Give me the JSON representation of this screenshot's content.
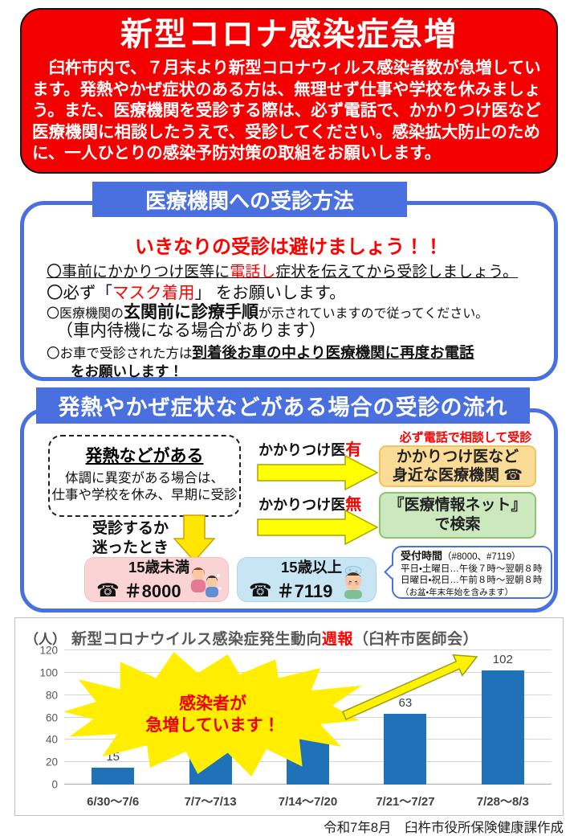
{
  "page": {
    "footer": "令和7年8月　臼杵市役所保険健康課作成"
  },
  "alert": {
    "title": "新型コロナ感染症急増",
    "body": "　臼杵市内で、７月末より新型コロナウィルス感染者数が急増しています。発熱やかぜ症状のある方は、無理せず仕事や学校を休みましょう。また、医療機関を受診する際は、必ず電話で、かかりつけ医など医療機関に相談したうえで、受診してください。感染拡大防止のために、一人ひとりの感染予防対策の取組をお願いします。"
  },
  "section1": {
    "header": "医療機関への受診方法",
    "warning": "いきなりの受診は避けましょう！！",
    "b1_pre": "〇事前にかかりつけ医等に",
    "b1_red": "電話し",
    "b1_post": "症状を伝えてから受診しましょう。",
    "b2_pre": "〇必ず「",
    "b2_red": "マスク着用",
    "b2_post": "」 をお願いします。",
    "b3_pre": "〇医療機関の",
    "b3_bold": "玄関前に診療手順",
    "b3_post": "が示されていますので従ってください。",
    "b4": "（車内待機になる場合があります）",
    "b5_pre": "〇お車で受診された方は",
    "b5_em": "到着後お車の中より医療機関に再度お電話",
    "b6": "をお願いします！"
  },
  "section2": {
    "header": "発熱やかぜ症状などがある場合の受診の流れ",
    "fever_title": "発熱などがある",
    "fever_line1": "体調に異変がある場合は、",
    "fever_line2": "仕事や学校を休み、早期に受診",
    "has_doctor_pre": "かかりつけ医",
    "has_doctor_red": "有",
    "no_doctor_pre": "かかりつけ医",
    "no_doctor_red": "無",
    "call_note": "必ず電話で相談して受診",
    "clinic_line1": "かかりつけ医など",
    "clinic_line2": "身近な医療機関",
    "phone_glyph": "☎",
    "net_line1": "『医療情報ネット』",
    "net_line2": "で検索",
    "hesitate_line1": "受診するか",
    "hesitate_line2": "迷ったとき",
    "under15_label": "15歳未満",
    "under15_number": "＃8000",
    "over15_label": "15歳以上",
    "over15_number": "＃7119",
    "hours_title": "受付時間",
    "hours_title_suffix": "（#8000、#7119）",
    "hours_line1": "平日・土曜日…午後７時～翌朝８時",
    "hours_line2": "日曜日・祝日…午前８時～翌朝８時",
    "hours_line3": "（お盆・年末年始を含みます）"
  },
  "chart_data": {
    "type": "bar",
    "title_plain": "新型コロナウイルス感染症発生動向",
    "title_red": "週報",
    "title_suffix": "（臼杵市医師会）",
    "unit_label": "（人）",
    "categories": [
      "6/30～7/6",
      "7/7～7/13",
      "7/14～7/20",
      "7/21～7/27",
      "7/28～8/3"
    ],
    "values": [
      15,
      32,
      44,
      63,
      102
    ],
    "ylim": [
      0,
      120
    ],
    "yticks": [
      0,
      20,
      40,
      60,
      80,
      100,
      120
    ],
    "bar_color": "#1f72b8",
    "grid": true,
    "annotation_line1": "感染者が",
    "annotation_line2": "急増しています！"
  }
}
